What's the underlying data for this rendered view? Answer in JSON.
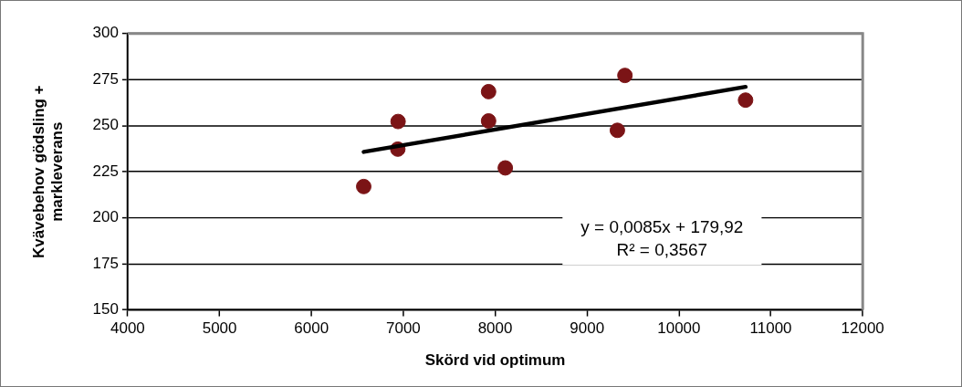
{
  "chart_data": {
    "type": "scatter",
    "xlabel": "Skörd vid optimum",
    "ylabel": "Kvävebehov gödsling + markleverans",
    "series": [
      {
        "color": "#7b1416",
        "marker": "circle",
        "x": [
          6569,
          6943,
          6940,
          7928,
          7928,
          8110,
          9412,
          9330,
          10725
        ],
        "values": [
          217,
          252.3,
          237.3,
          268.5,
          252.6,
          227.1,
          277.3,
          247.5,
          263.9
        ]
      },
      {
        "type": "line",
        "color": "#000000",
        "x": [
          6569,
          10725
        ],
        "values": [
          235.8,
          271.1
        ]
      }
    ],
    "xlim": [
      4000,
      12000
    ],
    "xticks": [
      4000,
      5000,
      6000,
      7000,
      8000,
      9000,
      10000,
      11000,
      12000
    ],
    "ylim": [
      150,
      300
    ],
    "yticks": [
      150,
      175,
      200,
      225,
      250,
      275,
      300
    ],
    "grid": "y",
    "legend": false,
    "annotations": [
      "y = 0,0085x + 179,92\nR² = 0,3567"
    ]
  }
}
